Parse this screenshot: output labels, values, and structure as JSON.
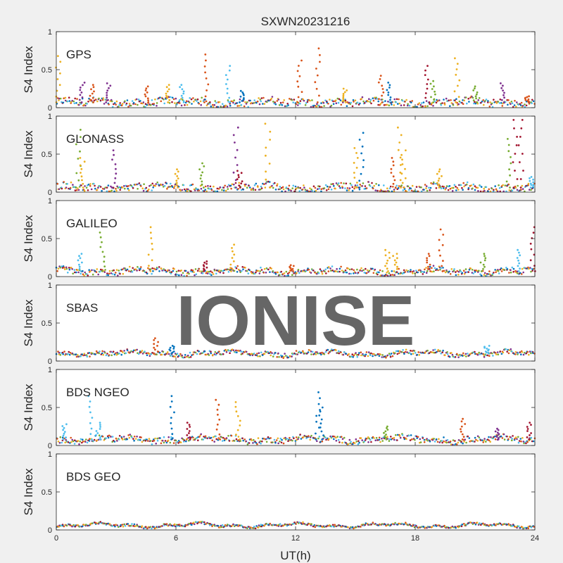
{
  "figure": {
    "title": "SXWN20231216",
    "xlabel": "UT(h)",
    "watermark": "IONISE",
    "x_ticks": [
      "0",
      "6",
      "12",
      "18",
      "24"
    ],
    "y_ticks": [
      "0",
      "0.5",
      "1"
    ]
  },
  "chart_data": [
    {
      "type": "scatter",
      "panel_label": "GPS",
      "ylabel": "S4 Index",
      "xlim": [
        0,
        24
      ],
      "ylim": [
        0,
        1
      ],
      "baseline": 0.07,
      "noise": 0.05,
      "spikes": [
        {
          "x": 0.1,
          "y": 0.68,
          "color": "#EDB120"
        },
        {
          "x": 1.3,
          "y": 0.33,
          "color": "#7E2F8E"
        },
        {
          "x": 1.8,
          "y": 0.3,
          "color": "#D95319"
        },
        {
          "x": 2.6,
          "y": 0.32,
          "color": "#7E2F8E"
        },
        {
          "x": 4.5,
          "y": 0.28,
          "color": "#D95319"
        },
        {
          "x": 5.6,
          "y": 0.3,
          "color": "#EDB120"
        },
        {
          "x": 6.3,
          "y": 0.3,
          "color": "#4DBEEE"
        },
        {
          "x": 7.5,
          "y": 0.7,
          "color": "#D95319"
        },
        {
          "x": 8.6,
          "y": 0.55,
          "color": "#4DBEEE"
        },
        {
          "x": 9.3,
          "y": 0.22,
          "color": "#0072BD"
        },
        {
          "x": 12.2,
          "y": 0.62,
          "color": "#D95319"
        },
        {
          "x": 13.1,
          "y": 0.78,
          "color": "#D95319"
        },
        {
          "x": 14.5,
          "y": 0.25,
          "color": "#EDB120"
        },
        {
          "x": 16.3,
          "y": 0.42,
          "color": "#D95319"
        },
        {
          "x": 16.7,
          "y": 0.33,
          "color": "#0072BD"
        },
        {
          "x": 18.6,
          "y": 0.55,
          "color": "#A2142F"
        },
        {
          "x": 18.9,
          "y": 0.35,
          "color": "#77AC30"
        },
        {
          "x": 20.1,
          "y": 0.65,
          "color": "#EDB120"
        },
        {
          "x": 21.0,
          "y": 0.28,
          "color": "#77AC30"
        },
        {
          "x": 22.4,
          "y": 0.32,
          "color": "#7E2F8E"
        },
        {
          "x": 23.6,
          "y": 0.15,
          "color": "#D95319"
        }
      ]
    },
    {
      "type": "scatter",
      "panel_label": "GLONASS",
      "ylabel": "S4 Index",
      "xlim": [
        0,
        24
      ],
      "ylim": [
        0,
        1
      ],
      "baseline": 0.06,
      "noise": 0.05,
      "spikes": [
        {
          "x": 1.1,
          "y": 0.82,
          "color": "#77AC30"
        },
        {
          "x": 1.3,
          "y": 0.45,
          "color": "#EDB120"
        },
        {
          "x": 2.9,
          "y": 0.55,
          "color": "#7E2F8E"
        },
        {
          "x": 6.0,
          "y": 0.3,
          "color": "#EDB120"
        },
        {
          "x": 7.3,
          "y": 0.38,
          "color": "#77AC30"
        },
        {
          "x": 9.0,
          "y": 0.85,
          "color": "#7E2F8E"
        },
        {
          "x": 9.2,
          "y": 0.28,
          "color": "#A2142F"
        },
        {
          "x": 10.6,
          "y": 0.9,
          "color": "#EDB120"
        },
        {
          "x": 15.0,
          "y": 0.58,
          "color": "#EDB120"
        },
        {
          "x": 15.3,
          "y": 0.78,
          "color": "#0072BD"
        },
        {
          "x": 16.9,
          "y": 0.45,
          "color": "#D95319"
        },
        {
          "x": 17.2,
          "y": 0.85,
          "color": "#EDB120"
        },
        {
          "x": 17.4,
          "y": 0.55,
          "color": "#EDB120"
        },
        {
          "x": 19.2,
          "y": 0.3,
          "color": "#EDB120"
        },
        {
          "x": 22.7,
          "y": 0.7,
          "color": "#77AC30"
        },
        {
          "x": 23.0,
          "y": 0.95,
          "color": "#A2142F"
        },
        {
          "x": 23.3,
          "y": 0.95,
          "color": "#A2142F"
        },
        {
          "x": 23.8,
          "y": 0.2,
          "color": "#4DBEEE"
        }
      ]
    },
    {
      "type": "scatter",
      "panel_label": "GALILEO",
      "ylabel": "S4 Index",
      "xlim": [
        0,
        24
      ],
      "ylim": [
        0,
        1
      ],
      "baseline": 0.07,
      "noise": 0.04,
      "spikes": [
        {
          "x": 1.2,
          "y": 0.3,
          "color": "#4DBEEE"
        },
        {
          "x": 2.3,
          "y": 0.58,
          "color": "#77AC30"
        },
        {
          "x": 4.7,
          "y": 0.65,
          "color": "#EDB120"
        },
        {
          "x": 7.5,
          "y": 0.2,
          "color": "#A2142F"
        },
        {
          "x": 8.8,
          "y": 0.42,
          "color": "#EDB120"
        },
        {
          "x": 11.8,
          "y": 0.15,
          "color": "#D95319"
        },
        {
          "x": 16.6,
          "y": 0.35,
          "color": "#EDB120"
        },
        {
          "x": 17.0,
          "y": 0.3,
          "color": "#EDB120"
        },
        {
          "x": 18.7,
          "y": 0.3,
          "color": "#D95319"
        },
        {
          "x": 19.3,
          "y": 0.62,
          "color": "#D95319"
        },
        {
          "x": 21.4,
          "y": 0.3,
          "color": "#77AC30"
        },
        {
          "x": 23.2,
          "y": 0.35,
          "color": "#4DBEEE"
        },
        {
          "x": 23.9,
          "y": 0.65,
          "color": "#A2142F"
        }
      ]
    },
    {
      "type": "scatter",
      "panel_label": "SBAS",
      "ylabel": "S4 Index",
      "xlim": [
        0,
        24
      ],
      "ylim": [
        0,
        1
      ],
      "baseline": 0.1,
      "noise": 0.03,
      "spikes": [
        {
          "x": 5.0,
          "y": 0.3,
          "color": "#D95319"
        },
        {
          "x": 5.8,
          "y": 0.2,
          "color": "#0072BD"
        },
        {
          "x": 21.6,
          "y": 0.2,
          "color": "#4DBEEE"
        }
      ]
    },
    {
      "type": "scatter",
      "panel_label": "BDS NGEO",
      "ylabel": "S4 Index",
      "xlim": [
        0,
        24
      ],
      "ylim": [
        0,
        1
      ],
      "baseline": 0.08,
      "noise": 0.04,
      "spikes": [
        {
          "x": 0.4,
          "y": 0.28,
          "color": "#4DBEEE"
        },
        {
          "x": 1.7,
          "y": 0.65,
          "color": "#4DBEEE"
        },
        {
          "x": 2.1,
          "y": 0.3,
          "color": "#4DBEEE"
        },
        {
          "x": 5.8,
          "y": 0.65,
          "color": "#0072BD"
        },
        {
          "x": 6.6,
          "y": 0.3,
          "color": "#A2142F"
        },
        {
          "x": 8.1,
          "y": 0.6,
          "color": "#D95319"
        },
        {
          "x": 9.1,
          "y": 0.57,
          "color": "#EDB120"
        },
        {
          "x": 13.1,
          "y": 0.7,
          "color": "#0072BD"
        },
        {
          "x": 13.3,
          "y": 0.5,
          "color": "#0072BD"
        },
        {
          "x": 16.5,
          "y": 0.25,
          "color": "#77AC30"
        },
        {
          "x": 20.4,
          "y": 0.35,
          "color": "#D95319"
        },
        {
          "x": 22.1,
          "y": 0.22,
          "color": "#7E2F8E"
        },
        {
          "x": 23.7,
          "y": 0.3,
          "color": "#A2142F"
        }
      ]
    },
    {
      "type": "scatter",
      "panel_label": "BDS GEO",
      "ylabel": "S4 Index",
      "xlim": [
        0,
        24
      ],
      "ylim": [
        0,
        1
      ],
      "baseline": 0.06,
      "noise": 0.015,
      "spikes": []
    }
  ]
}
